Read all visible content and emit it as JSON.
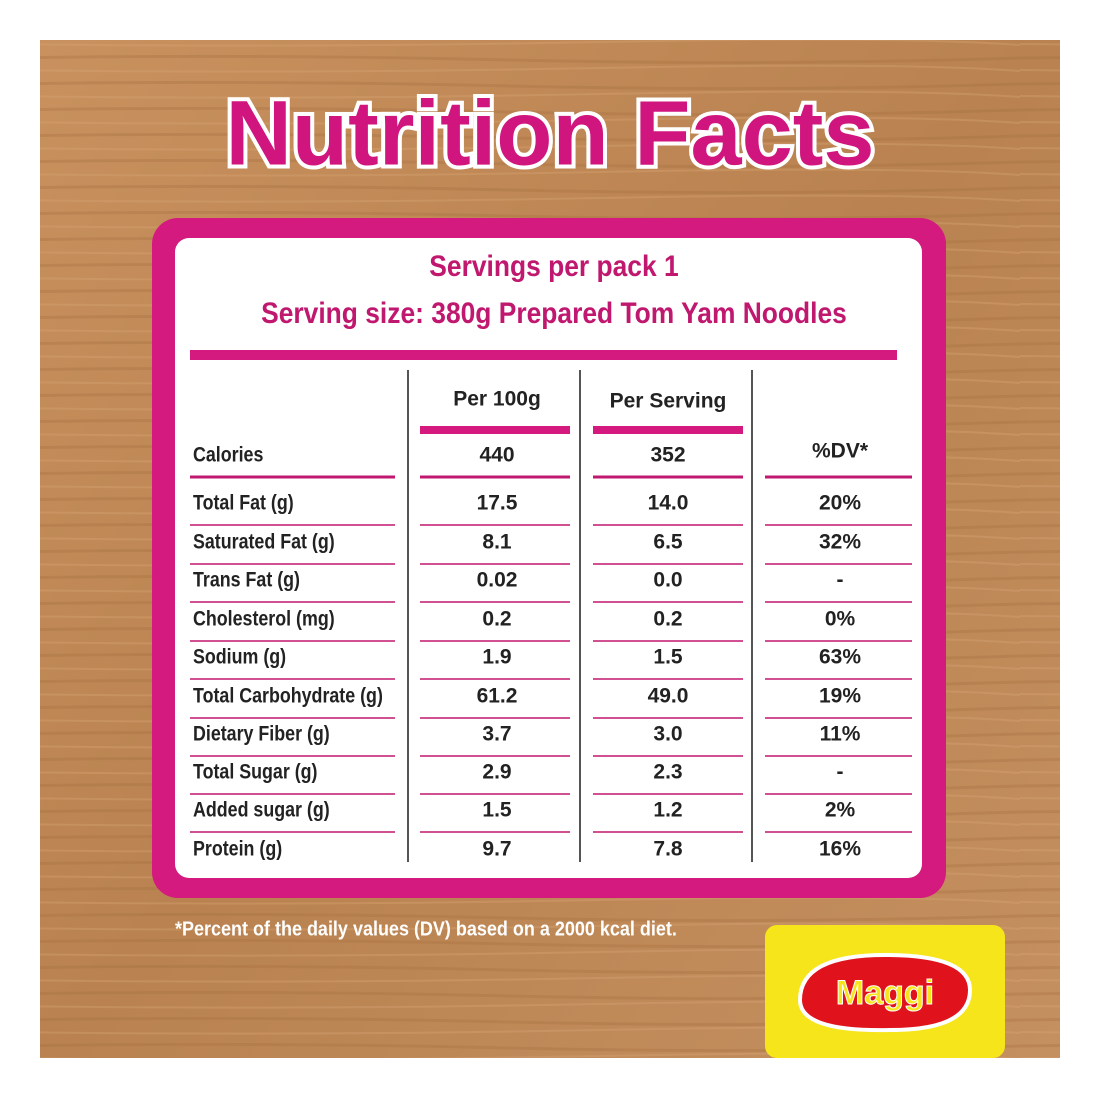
{
  "header": {
    "title": "Nutrition Facts"
  },
  "servings": "Servings per pack 1",
  "serving_size": "Serving size: 380g Prepared Tom Yam Noodles",
  "table": {
    "columns": [
      "Per 100g",
      "Per Serving",
      "%DV*"
    ],
    "rows": [
      [
        "Calories",
        "440",
        "352",
        ""
      ],
      [
        "Total Fat (g)",
        "17.5",
        "14.0",
        "20%"
      ],
      [
        "Saturated Fat (g)",
        "8.1",
        "6.5",
        "32%"
      ],
      [
        "Trans Fat (g)",
        "0.02",
        "0.0",
        "-"
      ],
      [
        "Cholesterol (mg)",
        "0.2",
        "0.2",
        "0%"
      ],
      [
        "Sodium (g)",
        "1.9",
        "1.5",
        "63%"
      ],
      [
        "Total Carbohydrate (g)",
        "61.2",
        "49.0",
        "19%"
      ],
      [
        "Dietary Fiber (g)",
        "3.7",
        "3.0",
        "11%"
      ],
      [
        "Total Sugar (g)",
        "2.9",
        "2.3",
        "-"
      ],
      [
        " Added sugar (g)",
        "1.5",
        "1.2",
        "2%"
      ],
      [
        "Protein (g)",
        "9.7",
        "7.8",
        "16%"
      ]
    ]
  },
  "footnote": "*Percent of the daily values (DV) based on a 2000 kcal diet.",
  "brand": "Maggi"
}
